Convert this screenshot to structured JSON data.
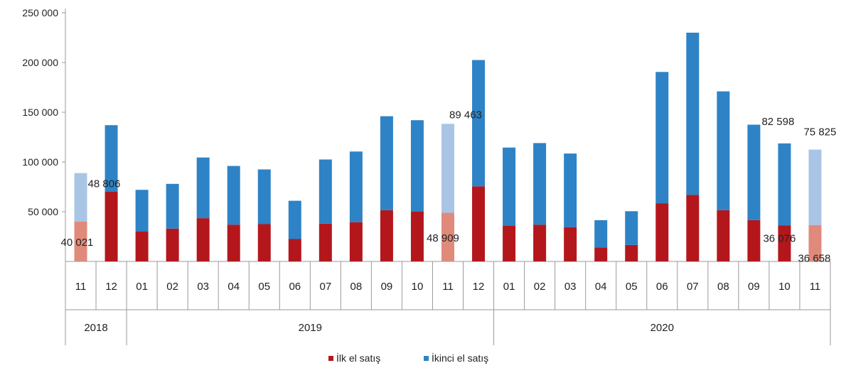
{
  "chart_data": {
    "type": "bar",
    "stacked": true,
    "title": "",
    "xlabel": "",
    "ylabel": "",
    "ylim": [
      0,
      250000
    ],
    "y_ticks": [
      "50 000",
      "100 000",
      "150 000",
      "200 000",
      "250 000"
    ],
    "y_tick_values": [
      50000,
      100000,
      150000,
      200000,
      250000
    ],
    "grid": false,
    "legend_position": "bottom",
    "categories": [
      "11",
      "12",
      "01",
      "02",
      "03",
      "04",
      "05",
      "06",
      "07",
      "08",
      "09",
      "10",
      "11",
      "12",
      "01",
      "02",
      "03",
      "04",
      "05",
      "06",
      "07",
      "08",
      "09",
      "10",
      "11"
    ],
    "year_groups": [
      {
        "label": "2018",
        "start": 0,
        "end": 1
      },
      {
        "label": "2019",
        "start": 2,
        "end": 13
      },
      {
        "label": "2020",
        "start": 14,
        "end": 24
      }
    ],
    "series": [
      {
        "name": "İlk el satış",
        "color": "#b3171c",
        "highlight_color": "#e08a7c",
        "values": [
          40021,
          70000,
          30000,
          33000,
          43500,
          37000,
          37500,
          22500,
          38000,
          39500,
          51500,
          50000,
          48909,
          75500,
          36000,
          37000,
          34500,
          14000,
          16500,
          58500,
          67000,
          51500,
          41500,
          36076,
          36658
        ]
      },
      {
        "name": "İkinci el satış",
        "color": "#2e83c6",
        "highlight_color": "#a9c5e6",
        "values": [
          48806,
          67000,
          42000,
          45000,
          61000,
          59000,
          55000,
          38500,
          64500,
          71000,
          94500,
          92000,
          89463,
          127000,
          78500,
          82000,
          74000,
          27500,
          34000,
          132000,
          163000,
          119500,
          96000,
          82598,
          75825
        ]
      }
    ],
    "highlighted_indices": [
      0,
      12,
      24
    ],
    "data_labels": [
      {
        "text": "40 021",
        "index": 0,
        "series": 0
      },
      {
        "text": "48 806",
        "index": 0,
        "series": 1
      },
      {
        "text": "48 909",
        "index": 12,
        "series": 0
      },
      {
        "text": "89 463",
        "index": 12,
        "series": 1
      },
      {
        "text": "36 076",
        "index": 23,
        "series": 0
      },
      {
        "text": "82 598",
        "index": 23,
        "series": 1
      },
      {
        "text": "36 658",
        "index": 24,
        "series": 0
      },
      {
        "text": "75 825",
        "index": 24,
        "series": 1
      }
    ]
  }
}
